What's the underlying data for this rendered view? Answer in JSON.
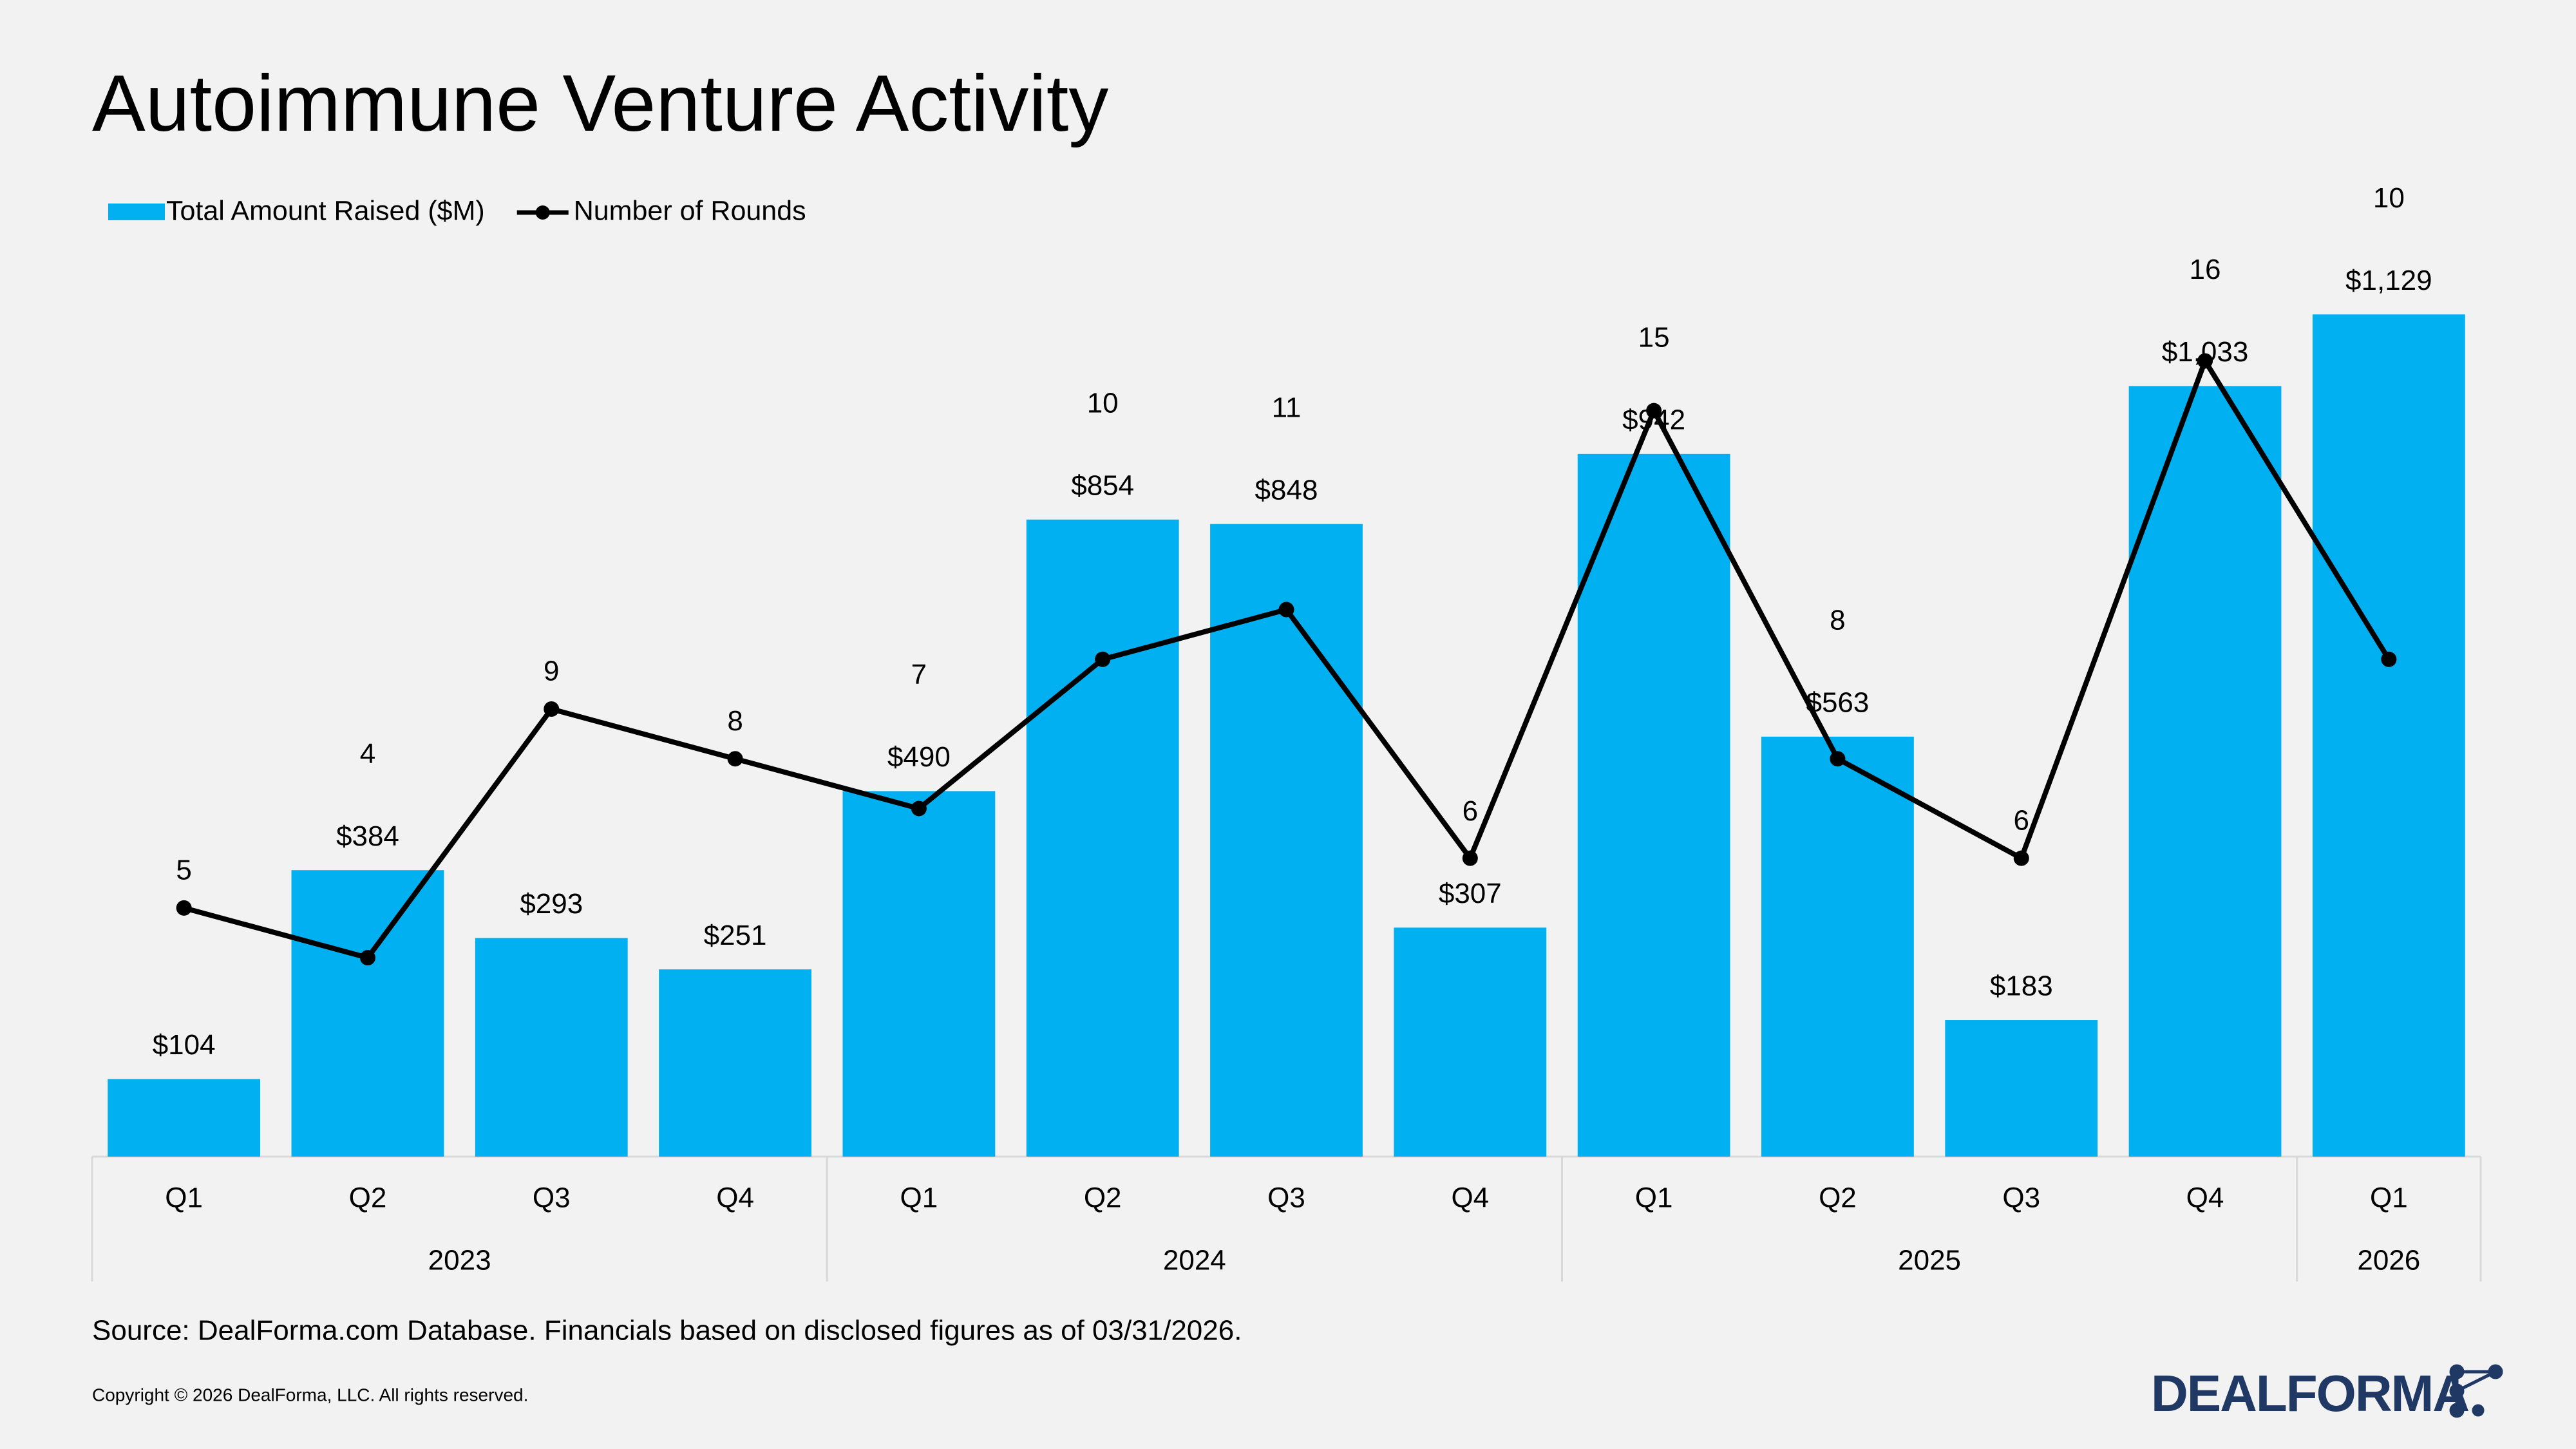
{
  "chart_data": {
    "type": "bar",
    "title": "Autoimmune Venture Activity",
    "groups": [
      {
        "label": "2023",
        "categories": [
          "Q1",
          "Q2",
          "Q3",
          "Q4"
        ]
      },
      {
        "label": "2024",
        "categories": [
          "Q1",
          "Q2",
          "Q3",
          "Q4"
        ]
      },
      {
        "label": "2025",
        "categories": [
          "Q1",
          "Q2",
          "Q3",
          "Q4"
        ]
      },
      {
        "label": "2026",
        "categories": [
          "Q1"
        ]
      }
    ],
    "series": [
      {
        "name": "Total Amount Raised ($M)",
        "type": "bar",
        "color": "#00b0f0",
        "values": [
          104,
          384,
          293,
          251,
          490,
          854,
          848,
          307,
          942,
          563,
          183,
          1033,
          1129
        ],
        "value_labels": [
          "$104",
          "$384",
          "$293",
          "$251",
          "$490",
          "$854",
          "$848",
          "$307",
          "$942",
          "$563",
          "$183",
          "$1,033",
          "$1,129"
        ]
      },
      {
        "name": "Number of Rounds",
        "type": "line",
        "axis": "y2",
        "color": "#000000",
        "values": [
          5,
          4,
          9,
          8,
          7,
          10,
          11,
          6,
          15,
          8,
          6,
          16,
          10
        ]
      }
    ],
    "ylim": [
      0,
      1200
    ],
    "y2lim": [
      0,
      18
    ],
    "legend": "top-left",
    "grid": false
  },
  "footer": {
    "source": "Source: DealForma.com Database. Financials based on disclosed figures as of 03/31/2026.",
    "copyright": "Copyright © 2026 DealForma, LLC. All rights reserved.",
    "logo": "DEALFORMA"
  }
}
